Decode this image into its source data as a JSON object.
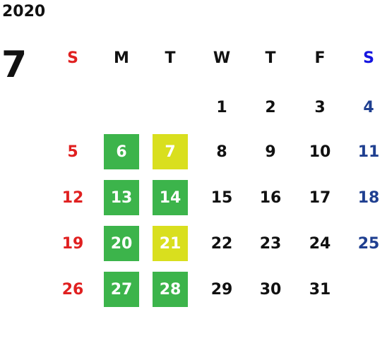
{
  "header": {
    "year": "2020",
    "month": "7"
  },
  "weekdays": [
    "S",
    "M",
    "T",
    "W",
    "T",
    "F",
    "S"
  ],
  "weeks": [
    [
      null,
      null,
      null,
      "1",
      "2",
      "3",
      "4"
    ],
    [
      "5",
      {
        "text": "6",
        "fill": "#3cb44b"
      },
      {
        "text": "7",
        "fill": "#d9df1e"
      },
      "8",
      "9",
      "10",
      "11"
    ],
    [
      "12",
      {
        "text": "13",
        "fill": "#3cb44b"
      },
      {
        "text": "14",
        "fill": "#3cb44b"
      },
      "15",
      "16",
      "17",
      "18"
    ],
    [
      "19",
      {
        "text": "20",
        "fill": "#3cb44b"
      },
      {
        "text": "21",
        "fill": "#d9df1e"
      },
      "22",
      "23",
      "24",
      "25"
    ],
    [
      "26",
      {
        "text": "27",
        "fill": "#3cb44b"
      },
      {
        "text": "28",
        "fill": "#3cb44b"
      },
      "29",
      "30",
      "31",
      null
    ]
  ]
}
